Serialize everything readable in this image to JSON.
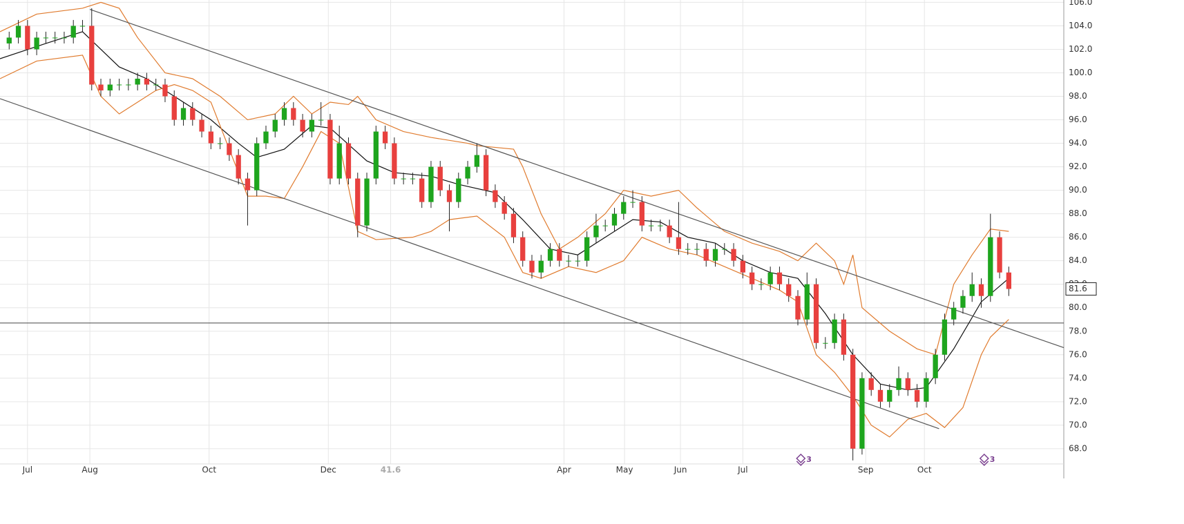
{
  "chart_data": {
    "type": "candlestick",
    "x": [
      0,
      1,
      2,
      3,
      4,
      5,
      6,
      7,
      8,
      9,
      10,
      11,
      12,
      13,
      14,
      15,
      16,
      17,
      18,
      19,
      20,
      21,
      22,
      23,
      24,
      25,
      26,
      27,
      28,
      29,
      30,
      31,
      32,
      33,
      34,
      35,
      36,
      37,
      38,
      39,
      40,
      41,
      42,
      43,
      44,
      45,
      46,
      47,
      48,
      49,
      50,
      51,
      52,
      53,
      54,
      55,
      56,
      57,
      58,
      59,
      60,
      61,
      62,
      63,
      64,
      65,
      66,
      67,
      68,
      69,
      70,
      71,
      72,
      73,
      74,
      75,
      76,
      77,
      78,
      79,
      80,
      81,
      82,
      83,
      84,
      85,
      86,
      87,
      88,
      89,
      90,
      91,
      92,
      93,
      94,
      95,
      96,
      97,
      98,
      99,
      100,
      101,
      102,
      103,
      104,
      105,
      106,
      107,
      108,
      109
    ],
    "open": [
      102.5,
      103,
      104,
      102,
      103,
      103,
      103,
      103,
      104,
      104,
      99,
      98.5,
      99,
      99,
      99,
      99.5,
      99,
      99,
      98,
      96,
      97,
      96,
      95,
      94,
      94,
      93,
      91,
      90,
      94,
      95,
      96,
      97,
      96,
      95,
      96,
      96,
      91,
      94,
      91,
      87,
      91,
      95,
      94,
      91,
      91,
      91,
      89,
      92,
      90,
      89,
      91,
      92,
      93,
      90,
      89,
      88,
      86,
      84,
      83,
      84,
      85,
      84,
      84,
      84,
      86,
      87,
      87,
      88,
      89,
      89,
      87,
      87,
      87,
      86,
      85,
      85,
      85,
      84,
      85,
      85,
      84,
      83,
      82,
      82,
      83,
      82,
      81,
      79,
      82,
      77,
      77,
      79,
      76,
      68,
      74,
      73,
      72,
      73,
      74,
      73,
      72,
      74,
      76,
      79,
      80,
      81,
      82,
      81,
      86,
      83
    ],
    "high": [
      103.5,
      104.5,
      104.5,
      103.5,
      103.5,
      103.5,
      103.5,
      104.5,
      104.5,
      105.5,
      99.5,
      99.5,
      99.5,
      99.5,
      100,
      100,
      99.5,
      99.5,
      98.5,
      97.5,
      97.5,
      96.5,
      95.5,
      94.5,
      94.5,
      93.5,
      91.5,
      94.5,
      95.5,
      96.5,
      97.5,
      97.5,
      96.5,
      96.5,
      97.5,
      96.5,
      95.5,
      94.5,
      91.5,
      91.5,
      95.5,
      95.5,
      94.5,
      91.5,
      91.5,
      91.5,
      92.5,
      92.5,
      90.5,
      91.5,
      92.5,
      94,
      93.5,
      90.5,
      89.5,
      88.5,
      86.5,
      84.5,
      84.5,
      85.5,
      85.5,
      84.5,
      84.5,
      86.5,
      88,
      87.5,
      88.5,
      89.5,
      90,
      89.5,
      87.5,
      87.5,
      87.5,
      89,
      85.5,
      85.5,
      85.5,
      85.5,
      85.5,
      85.5,
      84.5,
      83.5,
      82.5,
      83.5,
      83.5,
      82.5,
      81.5,
      83,
      82.5,
      77.5,
      79.5,
      79.5,
      76.5,
      74.5,
      74.5,
      73.5,
      73.5,
      75,
      74.5,
      73.5,
      74.5,
      76.5,
      79.5,
      80.5,
      81.5,
      83,
      82.5,
      88,
      86.5,
      83.5
    ],
    "low": [
      102,
      102.5,
      101.5,
      101.5,
      102.5,
      102.5,
      102.5,
      102.5,
      103.5,
      98.5,
      98,
      98,
      98.5,
      98.5,
      98.5,
      98.5,
      98.5,
      97.5,
      95.5,
      95.5,
      95.5,
      94.5,
      93.5,
      93.5,
      92.5,
      90.5,
      87,
      89.5,
      93.5,
      94.5,
      95.5,
      95.5,
      94.5,
      94.5,
      95.5,
      90.5,
      90.5,
      90.5,
      86,
      86.5,
      90.5,
      93.5,
      90.5,
      90.5,
      90.5,
      88.5,
      88.5,
      89.5,
      86.5,
      88.5,
      90.5,
      91.5,
      89.5,
      88.5,
      87.5,
      85.5,
      83.5,
      82.5,
      82.5,
      83.5,
      83.5,
      83.5,
      83.5,
      83.5,
      85.5,
      86.5,
      86.5,
      87.5,
      88.5,
      86.5,
      86.5,
      86.5,
      85.5,
      84.5,
      84.5,
      84.5,
      83.5,
      83.5,
      84.5,
      83.5,
      82.5,
      81.5,
      81.5,
      81.5,
      81.5,
      80.5,
      78.5,
      78.5,
      76.5,
      76.5,
      76.5,
      75.5,
      67,
      67.5,
      72.5,
      71.5,
      71.5,
      72.5,
      72.5,
      71.5,
      71.5,
      73.5,
      75.5,
      78.5,
      79.5,
      80.5,
      80,
      80.5,
      82.5,
      81
    ],
    "close": [
      103,
      104,
      102,
      103,
      103,
      103,
      103,
      104,
      104,
      99,
      98.5,
      99,
      99,
      99,
      99.5,
      99,
      99,
      98,
      96,
      97,
      96,
      95,
      94,
      94,
      93,
      91,
      90,
      94,
      95,
      96,
      97,
      96,
      95,
      96,
      96,
      91,
      94,
      91,
      87,
      91,
      95,
      94,
      91,
      91,
      91,
      89,
      92,
      90,
      89,
      91,
      92,
      93,
      90,
      89,
      88,
      86,
      84,
      83,
      84,
      85,
      84,
      84,
      84,
      86,
      87,
      87,
      88,
      89,
      89,
      87,
      87,
      87,
      86,
      85,
      85,
      85,
      84,
      85,
      85,
      84,
      83,
      82,
      82,
      83,
      82,
      81,
      79,
      82,
      77,
      77,
      79,
      76,
      68,
      74,
      73,
      72,
      73,
      74,
      73,
      72,
      74,
      76,
      79,
      80,
      81,
      82,
      81,
      86,
      83,
      81.6
    ],
    "up_color": "#1ea51e",
    "down_color": "#e8403e",
    "overlays": [
      {
        "color": "#111111",
        "x": [
          -1,
          4,
          8,
          12,
          15,
          18,
          22,
          25,
          27,
          30,
          33,
          35,
          39,
          42,
          46,
          49,
          53,
          56,
          59,
          62,
          65,
          68,
          71,
          74,
          77,
          80,
          83,
          86,
          89,
          92,
          95,
          98,
          100,
          103,
          106,
          109
        ],
        "values": [
          101.2,
          102.5,
          103.5,
          100.5,
          99.5,
          98,
          96,
          94,
          92.8,
          93.5,
          95.5,
          95.3,
          92.5,
          91.5,
          91.2,
          90.5,
          89.8,
          87.5,
          85,
          84.5,
          86,
          87.5,
          87.3,
          86,
          85.5,
          84,
          83,
          82.5,
          79.5,
          76,
          73.5,
          73,
          73.2,
          76.5,
          80.5,
          82.5
        ]
      },
      {
        "color": "#e07b2e",
        "x": [
          -1,
          3,
          8,
          10,
          12,
          14,
          17,
          20,
          23,
          26,
          29,
          31,
          33,
          35,
          37,
          38,
          40,
          43,
          46,
          50,
          51,
          55,
          56,
          58,
          60,
          62,
          65,
          67,
          70,
          73,
          75,
          78,
          81,
          84,
          86,
          88,
          90,
          91,
          92,
          93,
          96,
          99,
          101,
          103,
          105,
          107,
          109
        ],
        "values": [
          103.5,
          105,
          105.5,
          106,
          105.5,
          103,
          100,
          99.5,
          98,
          96,
          96.5,
          98,
          96.5,
          97.5,
          97.3,
          98,
          96,
          95,
          94.5,
          94,
          93.8,
          93.5,
          92,
          88,
          85,
          86,
          88,
          90,
          89.5,
          90,
          88.5,
          86.5,
          85.5,
          84.8,
          84,
          85.5,
          84,
          82,
          84.5,
          80,
          78,
          76.5,
          76,
          82,
          84.5,
          86.7,
          86.5
        ]
      },
      {
        "color": "#e07b2e",
        "x": [
          -1,
          3,
          8,
          10,
          12,
          14,
          16,
          18,
          20,
          22,
          25,
          26,
          28,
          30,
          32,
          34,
          36,
          38,
          40,
          44,
          46,
          48,
          51,
          54,
          56,
          58,
          61,
          64,
          67,
          69,
          72,
          75,
          78,
          81,
          84,
          86,
          88,
          90,
          92,
          94,
          96,
          98,
          100,
          102,
          104,
          106,
          107,
          109
        ],
        "values": [
          99.5,
          101,
          101.5,
          98,
          96.5,
          97.5,
          98.5,
          99,
          98.5,
          97.5,
          91.5,
          89.5,
          89.5,
          89.3,
          92,
          95,
          94,
          86.5,
          85.8,
          86,
          86.5,
          87.5,
          87.8,
          86,
          83,
          82.5,
          83.5,
          83,
          84,
          86,
          85,
          84.5,
          83.5,
          82.5,
          81.5,
          80.5,
          76,
          74.5,
          72.5,
          70,
          69,
          70.5,
          71,
          69.8,
          71.5,
          76,
          77.5,
          79
        ]
      },
      {
        "color": "#555555",
        "x": [
          8.8,
          115
        ],
        "values": [
          105.4,
          76.6
        ]
      },
      {
        "color": "#555555",
        "x": [
          -1,
          101.4
        ],
        "values": [
          97.8,
          69.7
        ]
      }
    ],
    "hline": 78.7,
    "last_price": 81.6,
    "events": [
      {
        "x": 86.7,
        "label": "3"
      },
      {
        "x": 106.7,
        "label": "3"
      }
    ],
    "xlim": [
      -1,
      115
    ],
    "ylim": [
      66.7,
      106.2
    ],
    "xticks": [
      {
        "value": 2,
        "label": "Jul"
      },
      {
        "value": 8.8,
        "label": "Aug"
      },
      {
        "value": 21.8,
        "label": "Oct"
      },
      {
        "value": 34.8,
        "label": "Dec"
      },
      41.6,
      {
        "value": 60.5,
        "label": "Apr"
      },
      {
        "value": 67.1,
        "label": "May"
      },
      {
        "value": 73.2,
        "label": "Jun"
      },
      {
        "value": 80,
        "label": "Jul"
      },
      {
        "value": 93.4,
        "label": "Sep"
      },
      {
        "value": 99.8,
        "label": "Oct"
      }
    ],
    "yticks": [
      {
        "value": 68,
        "label": "68.0"
      },
      {
        "value": 70,
        "label": "70.0"
      },
      {
        "value": 72,
        "label": "72.0"
      },
      {
        "value": 74,
        "label": "74.0"
      },
      {
        "value": 76,
        "label": "76.0"
      },
      {
        "value": 78,
        "label": "78.0"
      },
      {
        "value": 80,
        "label": "80.0"
      },
      {
        "value": 82,
        "label": "82.0"
      },
      {
        "value": 84,
        "label": "84.0"
      },
      {
        "value": 86,
        "label": "86.0"
      },
      {
        "value": 88,
        "label": "88.0"
      },
      {
        "value": 90,
        "label": "90.0"
      },
      {
        "value": 92,
        "label": "92.0"
      },
      {
        "value": 94,
        "label": "94.0"
      },
      {
        "value": 96,
        "label": "96.0"
      },
      {
        "value": 98,
        "label": "98.0"
      },
      {
        "value": 100,
        "label": "100.0"
      },
      {
        "value": 102,
        "label": "102.0"
      },
      {
        "value": 104,
        "label": "104.0"
      },
      {
        "value": 106,
        "label": "106.0"
      }
    ],
    "grid": true
  }
}
